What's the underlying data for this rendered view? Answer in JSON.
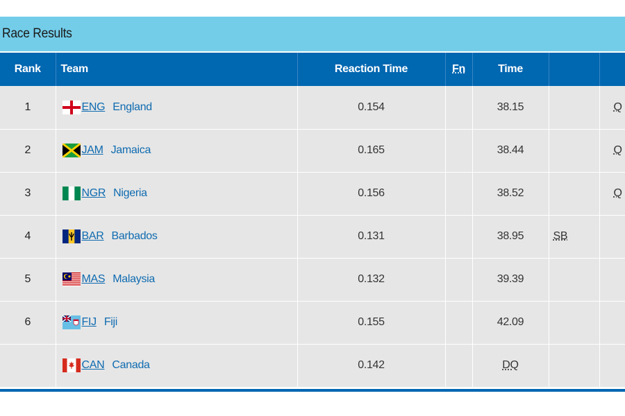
{
  "title": "Race Results",
  "columns": {
    "rank": "Rank",
    "team": "Team",
    "reaction_time": "Reaction Time",
    "fn": "Fn",
    "time": "Time",
    "record": "",
    "qualification": ""
  },
  "rows": [
    {
      "rank": "1",
      "code": "ENG",
      "team": "England",
      "flag": "eng-flag-icon",
      "reaction": "0.154",
      "fn": "",
      "time": "38.15",
      "record": "",
      "q": "Q"
    },
    {
      "rank": "2",
      "code": "JAM",
      "team": "Jamaica",
      "flag": "jam-flag-icon",
      "reaction": "0.165",
      "fn": "",
      "time": "38.44",
      "record": "",
      "q": "Q"
    },
    {
      "rank": "3",
      "code": "NGR",
      "team": "Nigeria",
      "flag": "ngr-flag-icon",
      "reaction": "0.156",
      "fn": "",
      "time": "38.52",
      "record": "",
      "q": "Q"
    },
    {
      "rank": "4",
      "code": "BAR",
      "team": "Barbados",
      "flag": "bar-flag-icon",
      "reaction": "0.131",
      "fn": "",
      "time": "38.95",
      "record": "SB",
      "q": ""
    },
    {
      "rank": "5",
      "code": "MAS",
      "team": "Malaysia",
      "flag": "mas-flag-icon",
      "reaction": "0.132",
      "fn": "",
      "time": "39.39",
      "record": "",
      "q": ""
    },
    {
      "rank": "6",
      "code": "FIJ",
      "team": "Fiji",
      "flag": "fij-flag-icon",
      "reaction": "0.155",
      "fn": "",
      "time": "42.09",
      "record": "",
      "q": ""
    },
    {
      "rank": "",
      "code": "CAN",
      "team": "Canada",
      "flag": "can-flag-icon",
      "reaction": "0.142",
      "fn": "",
      "time": "DQ",
      "record": "",
      "q": ""
    }
  ],
  "colors": {
    "title_bar": "#73cde9",
    "header": "#0067b1",
    "row": "#e6e6e6",
    "link": "#0f6bb0"
  }
}
